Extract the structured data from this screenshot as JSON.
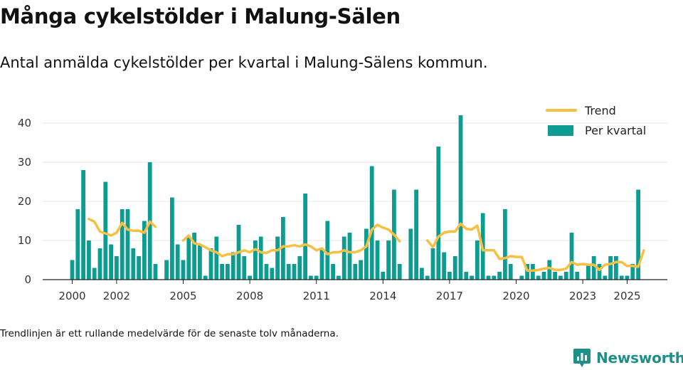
{
  "header": {
    "title": "Många cykelstölder i Malung-Sälen",
    "subtitle": "Antal anmälda cykelstölder per kvartal i Malung-Sälens kommun."
  },
  "footer": {
    "note": "Trendlinjen är ett rullande medelvärde för de senaste tolv månaderna.",
    "brand": "Newsworthy"
  },
  "colors": {
    "bar": "#0c9c92",
    "trend": "#f8c042",
    "grid": "#e4e4e4",
    "brand": "#1f8f8a"
  },
  "chart_data": {
    "type": "bar",
    "title": "",
    "xlabel": "",
    "ylabel": "",
    "ylim": [
      0,
      42
    ],
    "y_ticks": [
      0,
      10,
      20,
      30,
      40
    ],
    "x_ticks": [
      2000,
      2002,
      2005,
      2008,
      2011,
      2014,
      2017,
      2020,
      2023,
      2025
    ],
    "x_start": 2000.0,
    "quarter_step": 0.25,
    "legend": {
      "position": "top-right",
      "line_label": "Trend",
      "bar_label": "Per kvartal"
    },
    "series": [
      {
        "name": "Per kvartal",
        "kind": "bar",
        "values": [
          5,
          18,
          28,
          10,
          3,
          8,
          25,
          9,
          6,
          18,
          18,
          8,
          6,
          15,
          30,
          4,
          null,
          5,
          21,
          9,
          5,
          11,
          12,
          9,
          1,
          8,
          11,
          4,
          4,
          7,
          14,
          6,
          1,
          10,
          11,
          4,
          3,
          11,
          16,
          4,
          4,
          6,
          22,
          1,
          1,
          8,
          15,
          4,
          1,
          11,
          12,
          4,
          5,
          13,
          29,
          10,
          2,
          10,
          23,
          4,
          null,
          13,
          23,
          3,
          1,
          8,
          34,
          7,
          2,
          6,
          42,
          2,
          1,
          10,
          17,
          1,
          1,
          2,
          18,
          4,
          null,
          1,
          4,
          4,
          1,
          2,
          5,
          2,
          1,
          2,
          12,
          2,
          null,
          4,
          6,
          4,
          1,
          6,
          6,
          1,
          1,
          4,
          23
        ]
      },
      {
        "name": "Trend",
        "kind": "line",
        "segments": [
          [
            [
              2000.75,
              15.5
            ],
            [
              2001.0,
              14.8
            ],
            [
              2001.25,
              12.3
            ],
            [
              2001.5,
              11.8
            ],
            [
              2001.75,
              11.3
            ],
            [
              2002.0,
              12.0
            ],
            [
              2002.25,
              14.5
            ],
            [
              2002.5,
              12.8
            ],
            [
              2002.75,
              12.5
            ],
            [
              2003.0,
              12.5
            ],
            [
              2003.25,
              12.0
            ],
            [
              2003.5,
              14.8
            ],
            [
              2003.75,
              13.5
            ]
          ],
          [
            [
              2005.0,
              10.0
            ],
            [
              2005.25,
              11.3
            ],
            [
              2005.5,
              9.3
            ],
            [
              2005.75,
              9.0
            ],
            [
              2006.0,
              8.3
            ],
            [
              2006.25,
              7.5
            ],
            [
              2006.5,
              7.0
            ],
            [
              2006.75,
              6.0
            ],
            [
              2007.0,
              6.5
            ],
            [
              2007.25,
              6.5
            ],
            [
              2007.5,
              7.0
            ],
            [
              2007.75,
              7.5
            ],
            [
              2008.0,
              7.0
            ],
            [
              2008.25,
              7.8
            ],
            [
              2008.5,
              7.0
            ],
            [
              2008.75,
              6.8
            ],
            [
              2009.0,
              7.5
            ],
            [
              2009.25,
              7.5
            ],
            [
              2009.5,
              8.5
            ],
            [
              2009.75,
              8.5
            ],
            [
              2010.0,
              8.8
            ],
            [
              2010.25,
              8.5
            ],
            [
              2010.5,
              9.0
            ],
            [
              2010.75,
              8.5
            ],
            [
              2011.0,
              7.5
            ],
            [
              2011.25,
              8.0
            ],
            [
              2011.5,
              6.5
            ],
            [
              2011.75,
              7.0
            ],
            [
              2012.0,
              7.0
            ],
            [
              2012.25,
              7.5
            ],
            [
              2012.5,
              7.0
            ],
            [
              2012.75,
              7.0
            ],
            [
              2013.0,
              7.5
            ],
            [
              2013.25,
              8.5
            ],
            [
              2013.5,
              12.8
            ],
            [
              2013.75,
              14.0
            ],
            [
              2014.0,
              13.3
            ],
            [
              2014.25,
              12.8
            ],
            [
              2014.5,
              11.5
            ],
            [
              2014.75,
              9.8
            ]
          ],
          [
            [
              2016.0,
              10.0
            ],
            [
              2016.25,
              8.3
            ],
            [
              2016.5,
              11.0
            ],
            [
              2016.75,
              12.0
            ],
            [
              2017.0,
              12.3
            ],
            [
              2017.25,
              12.3
            ],
            [
              2017.5,
              14.3
            ],
            [
              2017.75,
              13.0
            ],
            [
              2018.0,
              12.8
            ],
            [
              2018.25,
              13.8
            ],
            [
              2018.5,
              7.5
            ],
            [
              2018.75,
              7.5
            ],
            [
              2019.0,
              7.5
            ],
            [
              2019.25,
              5.3
            ],
            [
              2019.5,
              5.5
            ],
            [
              2019.75,
              6.0
            ],
            [
              2020.0,
              5.8
            ],
            [
              2020.25,
              5.8
            ],
            [
              2020.5,
              2.3
            ],
            [
              2020.75,
              2.3
            ],
            [
              2021.0,
              2.5
            ],
            [
              2021.25,
              2.8
            ],
            [
              2021.5,
              3.0
            ],
            [
              2021.75,
              2.5
            ],
            [
              2022.0,
              2.5
            ],
            [
              2022.25,
              2.8
            ],
            [
              2022.5,
              4.5
            ],
            [
              2022.75,
              3.8
            ],
            [
              2023.0,
              4.0
            ],
            [
              2023.25,
              3.8
            ],
            [
              2023.5,
              3.8
            ],
            [
              2023.75,
              2.5
            ],
            [
              2024.0,
              3.8
            ],
            [
              2024.25,
              4.0
            ],
            [
              2024.5,
              4.5
            ],
            [
              2024.75,
              4.5
            ],
            [
              2025.0,
              3.5
            ],
            [
              2025.25,
              3.5
            ],
            [
              2025.5,
              3.3
            ],
            [
              2025.75,
              7.5
            ]
          ]
        ]
      }
    ]
  }
}
